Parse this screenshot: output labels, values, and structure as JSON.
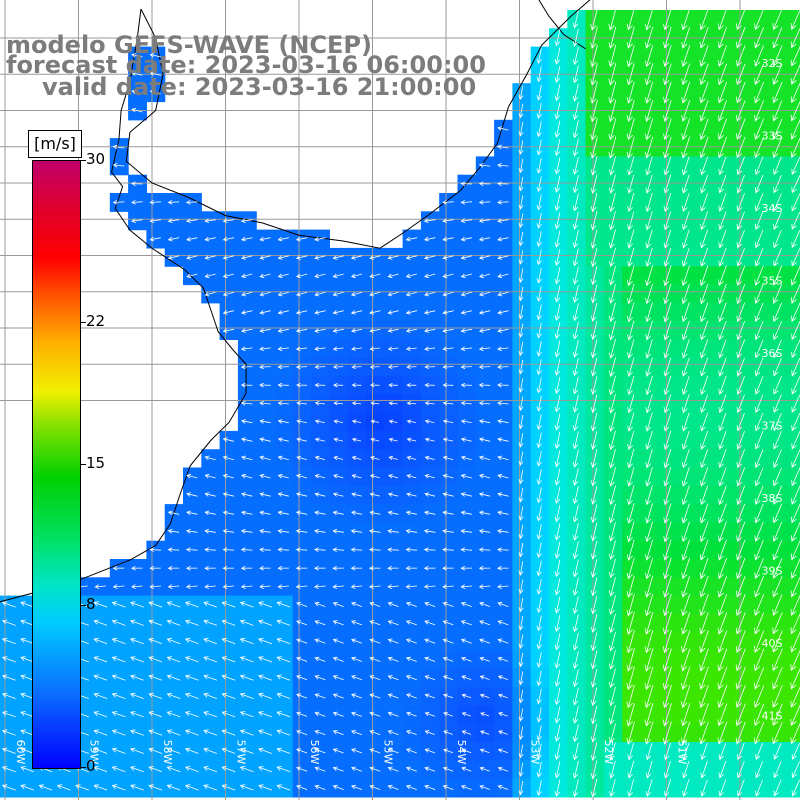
{
  "title": {
    "line1": "modelo GEFS-WAVE (NCEP)",
    "line2": "forecast date: 2023-03-16 06:00:00",
    "line3": "valid date: 2023-03-16 21:00:00"
  },
  "colorbar": {
    "unit": "[m/s]",
    "ticks": [
      "30",
      "22",
      "15",
      "8",
      "0"
    ],
    "tick_values": [
      30,
      22,
      15,
      8,
      0
    ],
    "min": 0,
    "max": 30
  },
  "grid": {
    "lat_labels": [
      "32S",
      "33S",
      "34S",
      "35S",
      "36S",
      "37S",
      "38S",
      "39S",
      "40S",
      "41S"
    ],
    "lon_labels": [
      "60W",
      "59W",
      "58W",
      "57W",
      "56W",
      "55W",
      "54W",
      "53W",
      "52W",
      "51W"
    ]
  },
  "colors": {
    "title": "#7c7c7c",
    "grid": "#999999",
    "coast": "#000000",
    "arrow": "#ffffff"
  },
  "field": {
    "quantity": "wind speed",
    "dominant_direction_offshore": "north-northeasterly flow, stronger east of the shelf",
    "range_observed": [
      2,
      14
    ]
  }
}
